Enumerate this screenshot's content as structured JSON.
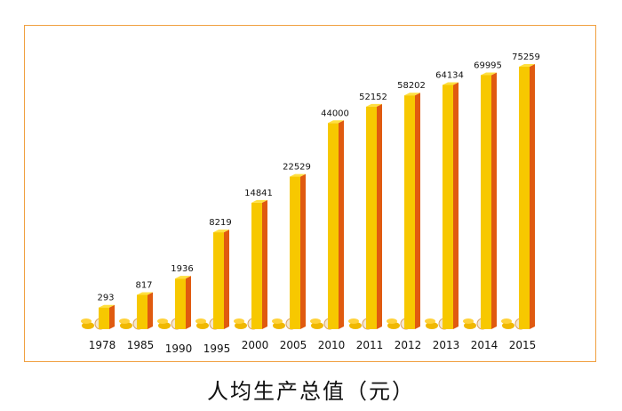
{
  "chart_data": {
    "type": "bar",
    "title": "人均生产总值（元）",
    "categories": [
      "1978",
      "1985",
      "1990",
      "1995",
      "2000",
      "2005",
      "2010",
      "2011",
      "2012",
      "2013",
      "2014",
      "2015"
    ],
    "values": [
      293,
      817,
      1936,
      8219,
      14841,
      22529,
      44000,
      52152,
      58202,
      64134,
      69995,
      75259
    ],
    "xlabel": "",
    "ylabel": "",
    "grid": false,
    "colors": {
      "front": "#f7c800",
      "side": "#e05a10",
      "top": "#ffe040",
      "border": "#f0a040",
      "coin": "#f0b800"
    }
  }
}
